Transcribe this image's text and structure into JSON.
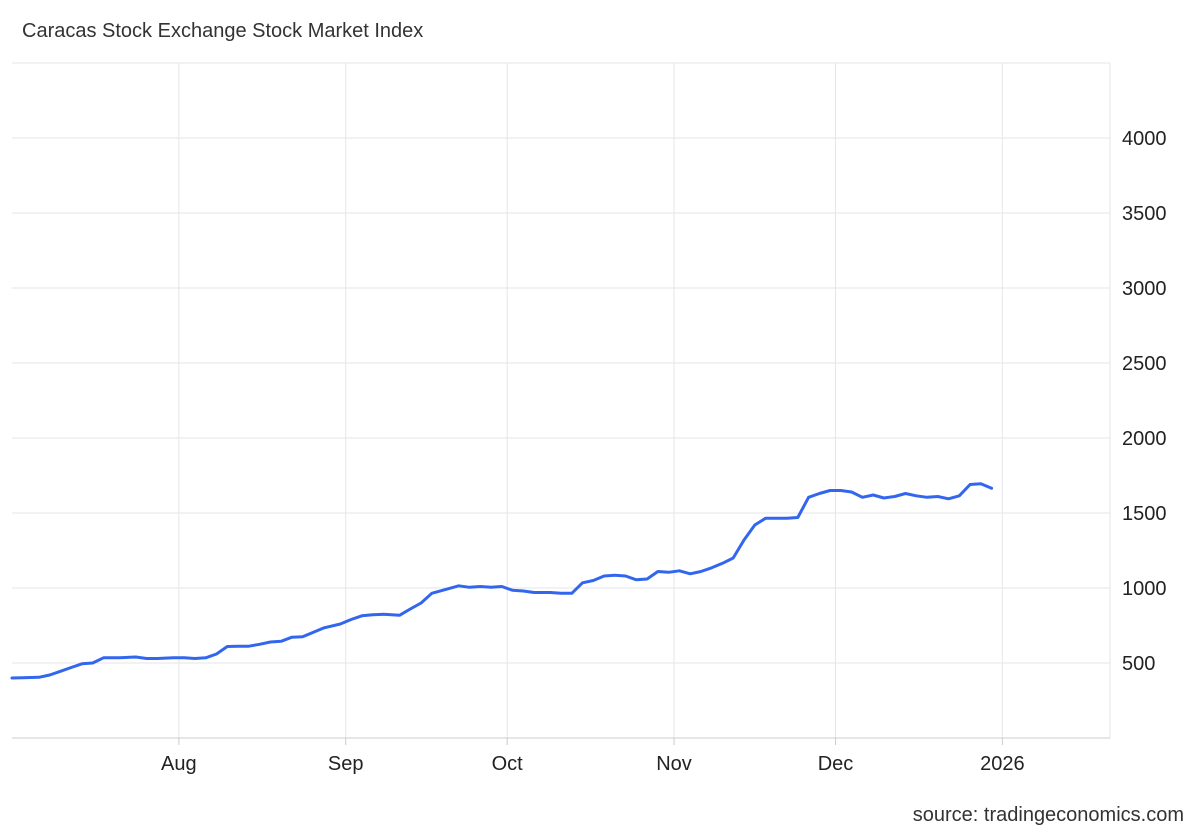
{
  "chart_data": {
    "type": "line",
    "title": "Caracas Stock Exchange Stock Market Index",
    "source": "source: tradingeconomics.com",
    "xlabel": "",
    "ylabel": "",
    "ylim": [
      0,
      4500
    ],
    "xlim": [
      "2025-07-01",
      "2026-01-21"
    ],
    "y_ticks": [
      500,
      1000,
      1500,
      2000,
      2500,
      3000,
      3500,
      4000
    ],
    "x_ticks": [
      {
        "label": "Aug",
        "date": "2025-08-01"
      },
      {
        "label": "Sep",
        "date": "2025-09-01"
      },
      {
        "label": "Oct",
        "date": "2025-10-01"
      },
      {
        "label": "Nov",
        "date": "2025-11-01"
      },
      {
        "label": "Dec",
        "date": "2025-12-01"
      },
      {
        "label": "2026",
        "date": "2026-01-01"
      }
    ],
    "grid": true,
    "y_axis_position": "right",
    "series": [
      {
        "color": "#3366ee",
        "points": [
          [
            "2025-07-01",
            400
          ],
          [
            "2025-07-03",
            402
          ],
          [
            "2025-07-06",
            405
          ],
          [
            "2025-07-08",
            420
          ],
          [
            "2025-07-10",
            445
          ],
          [
            "2025-07-12",
            470
          ],
          [
            "2025-07-14",
            495
          ],
          [
            "2025-07-16",
            500
          ],
          [
            "2025-07-18",
            535
          ],
          [
            "2025-07-21",
            535
          ],
          [
            "2025-07-24",
            540
          ],
          [
            "2025-07-26",
            530
          ],
          [
            "2025-07-28",
            530
          ],
          [
            "2025-07-31",
            535
          ],
          [
            "2025-08-02",
            535
          ],
          [
            "2025-08-04",
            530
          ],
          [
            "2025-08-06",
            535
          ],
          [
            "2025-08-08",
            560
          ],
          [
            "2025-08-10",
            610
          ],
          [
            "2025-08-12",
            612
          ],
          [
            "2025-08-14",
            612
          ],
          [
            "2025-08-16",
            625
          ],
          [
            "2025-08-18",
            640
          ],
          [
            "2025-08-20",
            645
          ],
          [
            "2025-08-22",
            672
          ],
          [
            "2025-08-24",
            675
          ],
          [
            "2025-08-26",
            705
          ],
          [
            "2025-08-28",
            735
          ],
          [
            "2025-08-31",
            760
          ],
          [
            "2025-09-02",
            790
          ],
          [
            "2025-09-04",
            815
          ],
          [
            "2025-09-06",
            822
          ],
          [
            "2025-09-08",
            825
          ],
          [
            "2025-09-11",
            818
          ],
          [
            "2025-09-13",
            860
          ],
          [
            "2025-09-15",
            900
          ],
          [
            "2025-09-17",
            965
          ],
          [
            "2025-09-20",
            995
          ],
          [
            "2025-09-22",
            1015
          ],
          [
            "2025-09-24",
            1005
          ],
          [
            "2025-09-26",
            1010
          ],
          [
            "2025-09-28",
            1005
          ],
          [
            "2025-09-30",
            1010
          ],
          [
            "2025-10-02",
            985
          ],
          [
            "2025-10-04",
            980
          ],
          [
            "2025-10-06",
            970
          ],
          [
            "2025-10-09",
            970
          ],
          [
            "2025-10-11",
            965
          ],
          [
            "2025-10-13",
            965
          ],
          [
            "2025-10-15",
            1035
          ],
          [
            "2025-10-17",
            1050
          ],
          [
            "2025-10-19",
            1080
          ],
          [
            "2025-10-21",
            1085
          ],
          [
            "2025-10-23",
            1080
          ],
          [
            "2025-10-25",
            1055
          ],
          [
            "2025-10-27",
            1060
          ],
          [
            "2025-10-29",
            1110
          ],
          [
            "2025-10-31",
            1105
          ],
          [
            "2025-11-02",
            1115
          ],
          [
            "2025-11-04",
            1095
          ],
          [
            "2025-11-06",
            1110
          ],
          [
            "2025-11-08",
            1135
          ],
          [
            "2025-11-10",
            1165
          ],
          [
            "2025-11-12",
            1200
          ],
          [
            "2025-11-14",
            1320
          ],
          [
            "2025-11-16",
            1420
          ],
          [
            "2025-11-18",
            1465
          ],
          [
            "2025-11-20",
            1465
          ],
          [
            "2025-11-22",
            1465
          ],
          [
            "2025-11-24",
            1470
          ],
          [
            "2025-11-26",
            1605
          ],
          [
            "2025-11-28",
            1630
          ],
          [
            "2025-11-30",
            1650
          ],
          [
            "2025-12-02",
            1650
          ],
          [
            "2025-12-04",
            1640
          ],
          [
            "2025-12-06",
            1605
          ],
          [
            "2025-12-08",
            1620
          ],
          [
            "2025-12-10",
            1600
          ],
          [
            "2025-12-12",
            1610
          ],
          [
            "2025-12-14",
            1630
          ],
          [
            "2025-12-16",
            1615
          ],
          [
            "2025-12-18",
            1605
          ],
          [
            "2025-12-20",
            1610
          ],
          [
            "2025-12-22",
            1595
          ],
          [
            "2025-12-24",
            1615
          ],
          [
            "2025-12-26",
            1690
          ],
          [
            "2025-12-28",
            1695
          ],
          [
            "2025-12-30",
            1665
          ]
        ]
      }
    ]
  }
}
